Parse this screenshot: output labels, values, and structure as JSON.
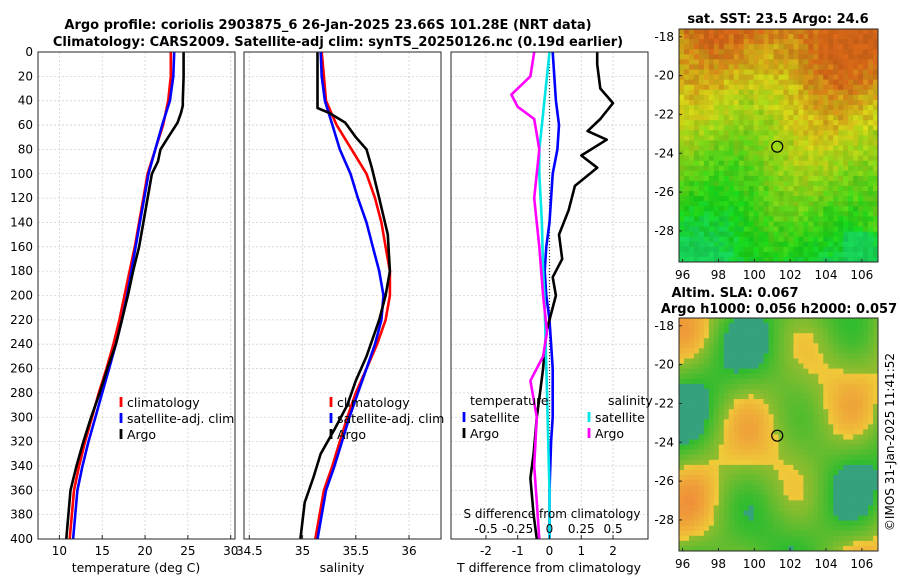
{
  "titles": {
    "line1": "Argo profile: coriolis 2903875_6 26-Jan-2025 23.66S 101.28E (NRT data)",
    "line2": "Climatology: CARS2009. Satellite-adj clim: synTS_20250126.nc (0.19d earlier)"
  },
  "timestamp": "©IMOS 31-Jan-2025 11:41:52",
  "colors": {
    "clim": "#ff0000",
    "sat": "#0000ff",
    "argo": "#000000",
    "tdiff_sat": "#0000ff",
    "sdiff_sat": "#00e5e5",
    "sdiff_argo": "#ff00ff"
  },
  "chart_data": [
    {
      "type": "line",
      "id": "temperature",
      "xlabel": "temperature (deg C)",
      "xlim": [
        7.5,
        30.5
      ],
      "xticks": [
        10,
        15,
        20,
        25,
        30
      ],
      "xtick_labels": [
        "10",
        "15",
        "20",
        "25",
        "30"
      ],
      "ylim": [
        0,
        400
      ],
      "yticks": [
        0,
        20,
        40,
        60,
        80,
        100,
        120,
        140,
        160,
        180,
        200,
        220,
        240,
        260,
        280,
        300,
        320,
        340,
        360,
        380,
        400
      ],
      "ytick_labels": [
        "0",
        "20",
        "40",
        "60",
        "80",
        "100",
        "120",
        "140",
        "160",
        "180",
        "200",
        "220",
        "240",
        "260",
        "280",
        "300",
        "320",
        "340",
        "360",
        "380",
        "400"
      ],
      "legend": [
        "climatology",
        "satellite-adj. clim",
        "Argo"
      ],
      "series": [
        {
          "name": "climatology",
          "color": "#ff0000",
          "x": [
            23.0,
            23.0,
            22.7,
            22.1,
            21.2,
            20.3,
            19.8,
            19.3,
            18.8,
            18.2,
            17.6,
            17.0,
            16.3,
            15.5,
            14.6,
            13.8,
            13.0,
            12.3,
            11.7,
            11.2
          ],
          "y": [
            0,
            20,
            40,
            60,
            80,
            100,
            120,
            140,
            160,
            180,
            200,
            220,
            240,
            260,
            280,
            300,
            320,
            340,
            360,
            400
          ]
        },
        {
          "name": "satellite-adj. clim",
          "color": "#0000ff",
          "x": [
            23.4,
            23.3,
            22.9,
            22.0,
            21.2,
            20.4,
            19.9,
            19.4,
            18.9,
            18.4,
            17.9,
            17.3,
            16.6,
            15.8,
            15.0,
            14.2,
            13.4,
            12.7,
            12.1,
            11.6
          ],
          "y": [
            0,
            20,
            40,
            60,
            80,
            100,
            120,
            140,
            160,
            180,
            200,
            220,
            240,
            260,
            280,
            300,
            320,
            340,
            360,
            400
          ]
        },
        {
          "name": "Argo",
          "color": "#000000",
          "x": [
            24.5,
            24.5,
            24.4,
            24.4,
            24.2,
            23.8,
            22.7,
            21.8,
            21.5,
            20.8,
            20.3,
            19.8,
            19.3,
            18.6,
            18.0,
            17.3,
            16.6,
            15.6,
            14.7,
            13.7,
            12.8,
            12.0,
            11.3,
            10.8
          ],
          "y": [
            0,
            20,
            40,
            44,
            50,
            58,
            70,
            80,
            90,
            100,
            120,
            140,
            160,
            180,
            200,
            220,
            240,
            260,
            280,
            300,
            320,
            340,
            360,
            400
          ]
        }
      ]
    },
    {
      "type": "line",
      "id": "salinity",
      "xlabel": "salinity",
      "xlim": [
        34.45,
        36.3
      ],
      "xticks": [
        34.5,
        35,
        35.5,
        36
      ],
      "xtick_labels": [
        "34.5",
        "35",
        "35.5",
        "36"
      ],
      "ylim": [
        0,
        400
      ],
      "legend": [
        "climatology",
        "satellite-adj. clim",
        "Argo"
      ],
      "series": [
        {
          "name": "climatology",
          "color": "#ff0000",
          "x": [
            35.18,
            35.2,
            35.22,
            35.32,
            35.46,
            35.6,
            35.68,
            35.74,
            35.78,
            35.82,
            35.82,
            35.78,
            35.7,
            35.6,
            35.5,
            35.42,
            35.35,
            35.28,
            35.2,
            35.12
          ],
          "y": [
            0,
            20,
            40,
            60,
            80,
            100,
            120,
            140,
            160,
            180,
            200,
            220,
            240,
            260,
            280,
            300,
            320,
            340,
            360,
            400
          ]
        },
        {
          "name": "satellite-adj. clim",
          "color": "#0000ff",
          "x": [
            35.17,
            35.18,
            35.21,
            35.28,
            35.35,
            35.45,
            35.52,
            35.6,
            35.66,
            35.72,
            35.76,
            35.74,
            35.68,
            35.6,
            35.52,
            35.44,
            35.37,
            35.3,
            35.22,
            35.14
          ],
          "y": [
            0,
            20,
            40,
            60,
            80,
            100,
            120,
            140,
            160,
            180,
            200,
            220,
            240,
            260,
            280,
            300,
            320,
            340,
            360,
            400
          ]
        },
        {
          "name": "Argo",
          "color": "#000000",
          "x": [
            35.14,
            35.14,
            35.14,
            35.14,
            35.25,
            35.4,
            35.5,
            35.6,
            35.65,
            35.72,
            35.8,
            35.82,
            35.78,
            35.72,
            35.6,
            35.5,
            35.42,
            35.3,
            35.17,
            35.1,
            35.02,
            34.98
          ],
          "y": [
            0,
            20,
            40,
            46,
            50,
            58,
            70,
            80,
            95,
            120,
            150,
            180,
            200,
            220,
            250,
            270,
            290,
            310,
            330,
            350,
            370,
            400
          ]
        }
      ]
    },
    {
      "type": "line",
      "id": "differences",
      "xlabel": "T difference from climatology",
      "xlim": [
        -3.1,
        3.1
      ],
      "xticks": [
        -2,
        -1,
        0,
        1,
        2
      ],
      "xtick_labels": [
        "-2",
        "-1",
        "0",
        "1",
        "2"
      ],
      "ylim": [
        0,
        400
      ],
      "top_axis_label": "S difference from climatology",
      "top_axis_ticks": [
        "-0.5",
        "-0.25",
        "0",
        "0.25",
        "0.5"
      ],
      "s_tick_values": [
        -0.5,
        -0.25,
        0,
        0.25,
        0.5
      ],
      "legend_temperature_title": "temperature",
      "legend_salinity_title": "salinity",
      "legend_temperature": [
        "satellite",
        "Argo"
      ],
      "legend_salinity": [
        "satellite",
        "Argo"
      ],
      "series": [
        {
          "name": "T satellite",
          "color": "#0000ff",
          "x": [
            0.1,
            0.15,
            0.2,
            0.3,
            0.25,
            0.1,
            0.05,
            0.0,
            -0.1,
            -0.15,
            -0.1,
            0.0,
            0.05,
            0.1,
            0.1,
            0.1,
            0.05,
            0.0,
            0.0
          ],
          "y": [
            0,
            20,
            40,
            60,
            80,
            100,
            120,
            140,
            160,
            180,
            200,
            220,
            240,
            260,
            280,
            300,
            320,
            360,
            400
          ]
        },
        {
          "name": "T Argo",
          "color": "#000000",
          "x": [
            1.5,
            1.5,
            1.6,
            2.0,
            1.6,
            1.2,
            1.8,
            1.0,
            1.5,
            0.8,
            0.6,
            0.3,
            0.4,
            0.1,
            0.2,
            -0.1,
            -0.2,
            -0.3,
            -0.4,
            -0.5,
            -0.6,
            -0.5,
            -0.4
          ],
          "y": [
            0,
            10,
            30,
            42,
            55,
            65,
            72,
            85,
            95,
            110,
            130,
            150,
            170,
            185,
            200,
            230,
            260,
            280,
            300,
            330,
            350,
            380,
            400
          ]
        },
        {
          "name": "S satellite",
          "color": "#00e5e5",
          "x": [
            0.0,
            -0.02,
            -0.04,
            -0.06,
            -0.08,
            -0.08,
            -0.06,
            -0.05,
            -0.04,
            -0.03,
            -0.02,
            -0.01,
            0.0,
            0.0
          ],
          "y": [
            0,
            20,
            40,
            60,
            80,
            100,
            140,
            180,
            200,
            240,
            280,
            320,
            360,
            400
          ]
        },
        {
          "name": "S Argo",
          "color": "#ff00ff",
          "x": [
            -0.12,
            -0.15,
            -0.3,
            -0.25,
            -0.12,
            -0.08,
            -0.12,
            -0.08,
            -0.05,
            -0.02,
            -0.05,
            -0.15,
            -0.1,
            -0.12,
            -0.1,
            -0.08
          ],
          "y": [
            0,
            20,
            35,
            45,
            55,
            80,
            120,
            160,
            200,
            230,
            250,
            270,
            300,
            340,
            370,
            400
          ]
        }
      ]
    },
    {
      "type": "heatmap",
      "id": "sst_map",
      "title": "sat. SST: 23.5 Argo: 24.6",
      "xlim": [
        95.8,
        106.9
      ],
      "ylim": [
        -29.6,
        -17.6
      ],
      "xticks": [
        96,
        98,
        100,
        102,
        104,
        106
      ],
      "xtick_labels": [
        "96",
        "98",
        "100",
        "102",
        "104",
        "106"
      ],
      "yticks": [
        -18,
        -20,
        -22,
        -24,
        -26,
        -28
      ],
      "ytick_labels": [
        "-18",
        "-20",
        "-22",
        "-24",
        "-26",
        "-28"
      ],
      "marker": {
        "lon": 101.28,
        "lat": -23.66
      }
    },
    {
      "type": "heatmap",
      "id": "sla_map",
      "title_line1": "Altim. SLA: 0.067",
      "title_line2": "Argo h1000: 0.056 h2000: 0.057",
      "xlim": [
        95.8,
        106.9
      ],
      "ylim": [
        -29.6,
        -17.6
      ],
      "xticks": [
        96,
        98,
        100,
        102,
        104,
        106
      ],
      "xtick_labels": [
        "96",
        "98",
        "100",
        "102",
        "104",
        "106"
      ],
      "yticks": [
        -18,
        -20,
        -22,
        -24,
        -26,
        -28
      ],
      "ytick_labels": [
        "-18",
        "-20",
        "-22",
        "-24",
        "-26",
        "-28"
      ],
      "marker": {
        "lon": 101.28,
        "lat": -23.66
      }
    }
  ]
}
